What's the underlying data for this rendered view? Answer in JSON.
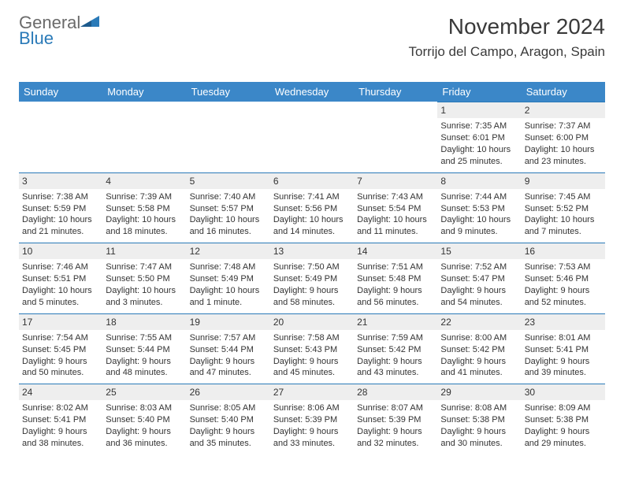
{
  "logo": {
    "text1": "General",
    "text2": "Blue"
  },
  "header": {
    "month": "November 2024",
    "location": "Torrijo del Campo, Aragon, Spain"
  },
  "colors": {
    "header_bg": "#3b87c8",
    "header_text": "#ffffff",
    "daynum_bg": "#eeeeee",
    "daynum_border": "#2a7ab8",
    "body_text": "#333333",
    "logo_gray": "#6a6a6a",
    "logo_blue": "#2a7ab8"
  },
  "weekdays": [
    "Sunday",
    "Monday",
    "Tuesday",
    "Wednesday",
    "Thursday",
    "Friday",
    "Saturday"
  ],
  "weeks": [
    [
      {
        "num": "",
        "sunrise": "",
        "sunset": "",
        "daylight1": "",
        "daylight2": ""
      },
      {
        "num": "",
        "sunrise": "",
        "sunset": "",
        "daylight1": "",
        "daylight2": ""
      },
      {
        "num": "",
        "sunrise": "",
        "sunset": "",
        "daylight1": "",
        "daylight2": ""
      },
      {
        "num": "",
        "sunrise": "",
        "sunset": "",
        "daylight1": "",
        "daylight2": ""
      },
      {
        "num": "",
        "sunrise": "",
        "sunset": "",
        "daylight1": "",
        "daylight2": ""
      },
      {
        "num": "1",
        "sunrise": "Sunrise: 7:35 AM",
        "sunset": "Sunset: 6:01 PM",
        "daylight1": "Daylight: 10 hours",
        "daylight2": "and 25 minutes."
      },
      {
        "num": "2",
        "sunrise": "Sunrise: 7:37 AM",
        "sunset": "Sunset: 6:00 PM",
        "daylight1": "Daylight: 10 hours",
        "daylight2": "and 23 minutes."
      }
    ],
    [
      {
        "num": "3",
        "sunrise": "Sunrise: 7:38 AM",
        "sunset": "Sunset: 5:59 PM",
        "daylight1": "Daylight: 10 hours",
        "daylight2": "and 21 minutes."
      },
      {
        "num": "4",
        "sunrise": "Sunrise: 7:39 AM",
        "sunset": "Sunset: 5:58 PM",
        "daylight1": "Daylight: 10 hours",
        "daylight2": "and 18 minutes."
      },
      {
        "num": "5",
        "sunrise": "Sunrise: 7:40 AM",
        "sunset": "Sunset: 5:57 PM",
        "daylight1": "Daylight: 10 hours",
        "daylight2": "and 16 minutes."
      },
      {
        "num": "6",
        "sunrise": "Sunrise: 7:41 AM",
        "sunset": "Sunset: 5:56 PM",
        "daylight1": "Daylight: 10 hours",
        "daylight2": "and 14 minutes."
      },
      {
        "num": "7",
        "sunrise": "Sunrise: 7:43 AM",
        "sunset": "Sunset: 5:54 PM",
        "daylight1": "Daylight: 10 hours",
        "daylight2": "and 11 minutes."
      },
      {
        "num": "8",
        "sunrise": "Sunrise: 7:44 AM",
        "sunset": "Sunset: 5:53 PM",
        "daylight1": "Daylight: 10 hours",
        "daylight2": "and 9 minutes."
      },
      {
        "num": "9",
        "sunrise": "Sunrise: 7:45 AM",
        "sunset": "Sunset: 5:52 PM",
        "daylight1": "Daylight: 10 hours",
        "daylight2": "and 7 minutes."
      }
    ],
    [
      {
        "num": "10",
        "sunrise": "Sunrise: 7:46 AM",
        "sunset": "Sunset: 5:51 PM",
        "daylight1": "Daylight: 10 hours",
        "daylight2": "and 5 minutes."
      },
      {
        "num": "11",
        "sunrise": "Sunrise: 7:47 AM",
        "sunset": "Sunset: 5:50 PM",
        "daylight1": "Daylight: 10 hours",
        "daylight2": "and 3 minutes."
      },
      {
        "num": "12",
        "sunrise": "Sunrise: 7:48 AM",
        "sunset": "Sunset: 5:49 PM",
        "daylight1": "Daylight: 10 hours",
        "daylight2": "and 1 minute."
      },
      {
        "num": "13",
        "sunrise": "Sunrise: 7:50 AM",
        "sunset": "Sunset: 5:49 PM",
        "daylight1": "Daylight: 9 hours",
        "daylight2": "and 58 minutes."
      },
      {
        "num": "14",
        "sunrise": "Sunrise: 7:51 AM",
        "sunset": "Sunset: 5:48 PM",
        "daylight1": "Daylight: 9 hours",
        "daylight2": "and 56 minutes."
      },
      {
        "num": "15",
        "sunrise": "Sunrise: 7:52 AM",
        "sunset": "Sunset: 5:47 PM",
        "daylight1": "Daylight: 9 hours",
        "daylight2": "and 54 minutes."
      },
      {
        "num": "16",
        "sunrise": "Sunrise: 7:53 AM",
        "sunset": "Sunset: 5:46 PM",
        "daylight1": "Daylight: 9 hours",
        "daylight2": "and 52 minutes."
      }
    ],
    [
      {
        "num": "17",
        "sunrise": "Sunrise: 7:54 AM",
        "sunset": "Sunset: 5:45 PM",
        "daylight1": "Daylight: 9 hours",
        "daylight2": "and 50 minutes."
      },
      {
        "num": "18",
        "sunrise": "Sunrise: 7:55 AM",
        "sunset": "Sunset: 5:44 PM",
        "daylight1": "Daylight: 9 hours",
        "daylight2": "and 48 minutes."
      },
      {
        "num": "19",
        "sunrise": "Sunrise: 7:57 AM",
        "sunset": "Sunset: 5:44 PM",
        "daylight1": "Daylight: 9 hours",
        "daylight2": "and 47 minutes."
      },
      {
        "num": "20",
        "sunrise": "Sunrise: 7:58 AM",
        "sunset": "Sunset: 5:43 PM",
        "daylight1": "Daylight: 9 hours",
        "daylight2": "and 45 minutes."
      },
      {
        "num": "21",
        "sunrise": "Sunrise: 7:59 AM",
        "sunset": "Sunset: 5:42 PM",
        "daylight1": "Daylight: 9 hours",
        "daylight2": "and 43 minutes."
      },
      {
        "num": "22",
        "sunrise": "Sunrise: 8:00 AM",
        "sunset": "Sunset: 5:42 PM",
        "daylight1": "Daylight: 9 hours",
        "daylight2": "and 41 minutes."
      },
      {
        "num": "23",
        "sunrise": "Sunrise: 8:01 AM",
        "sunset": "Sunset: 5:41 PM",
        "daylight1": "Daylight: 9 hours",
        "daylight2": "and 39 minutes."
      }
    ],
    [
      {
        "num": "24",
        "sunrise": "Sunrise: 8:02 AM",
        "sunset": "Sunset: 5:41 PM",
        "daylight1": "Daylight: 9 hours",
        "daylight2": "and 38 minutes."
      },
      {
        "num": "25",
        "sunrise": "Sunrise: 8:03 AM",
        "sunset": "Sunset: 5:40 PM",
        "daylight1": "Daylight: 9 hours",
        "daylight2": "and 36 minutes."
      },
      {
        "num": "26",
        "sunrise": "Sunrise: 8:05 AM",
        "sunset": "Sunset: 5:40 PM",
        "daylight1": "Daylight: 9 hours",
        "daylight2": "and 35 minutes."
      },
      {
        "num": "27",
        "sunrise": "Sunrise: 8:06 AM",
        "sunset": "Sunset: 5:39 PM",
        "daylight1": "Daylight: 9 hours",
        "daylight2": "and 33 minutes."
      },
      {
        "num": "28",
        "sunrise": "Sunrise: 8:07 AM",
        "sunset": "Sunset: 5:39 PM",
        "daylight1": "Daylight: 9 hours",
        "daylight2": "and 32 minutes."
      },
      {
        "num": "29",
        "sunrise": "Sunrise: 8:08 AM",
        "sunset": "Sunset: 5:38 PM",
        "daylight1": "Daylight: 9 hours",
        "daylight2": "and 30 minutes."
      },
      {
        "num": "30",
        "sunrise": "Sunrise: 8:09 AM",
        "sunset": "Sunset: 5:38 PM",
        "daylight1": "Daylight: 9 hours",
        "daylight2": "and 29 minutes."
      }
    ]
  ]
}
